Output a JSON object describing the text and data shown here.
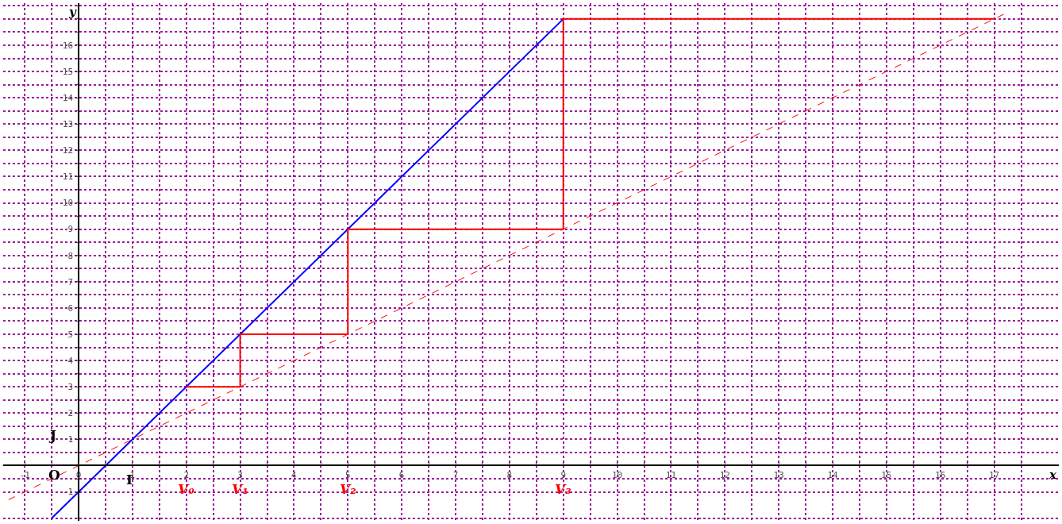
{
  "chart_data": {
    "type": "line",
    "xlabel": "x",
    "ylabel": "y",
    "xlim": [
      -1.4,
      18.2
    ],
    "ylim": [
      -2.1,
      17.6
    ],
    "xticks": [
      -1,
      {
        "value": -0.5,
        "label": null
      },
      0,
      {
        "value": 0.5,
        "label": null
      },
      1,
      {
        "value": 1.5,
        "label": null
      },
      2,
      {
        "value": 2.5,
        "label": null
      },
      3,
      {
        "value": 3.5,
        "label": null
      },
      4,
      {
        "value": 4.5,
        "label": null
      },
      5,
      {
        "value": 5.5,
        "label": null
      },
      6,
      {
        "value": 6.5,
        "label": null
      },
      7,
      {
        "value": 7.5,
        "label": null
      },
      8,
      {
        "value": 8.5,
        "label": null
      },
      9,
      {
        "value": 9.5,
        "label": null
      },
      10,
      {
        "value": 10.5,
        "label": null
      },
      11,
      {
        "value": 11.5,
        "label": null
      },
      12,
      {
        "value": 12.5,
        "label": null
      },
      13,
      {
        "value": 13.5,
        "label": null
      },
      14,
      {
        "value": 14.5,
        "label": null
      },
      15,
      {
        "value": 15.5,
        "label": null
      },
      16,
      {
        "value": 16.5,
        "label": null
      },
      17,
      {
        "value": 17.5,
        "label": null
      }
    ],
    "yticks": [
      {
        "value": -2,
        "label": null
      },
      -1,
      {
        "value": -0.5,
        "label": null
      },
      {
        "value": 0.5,
        "label": null
      },
      1,
      {
        "value": 1.5,
        "label": null
      },
      2,
      {
        "value": 2.5,
        "label": null
      },
      3,
      {
        "value": 3.5,
        "label": null
      },
      4,
      {
        "value": 4.5,
        "label": null
      },
      5,
      {
        "value": 5.5,
        "label": null
      },
      6,
      {
        "value": 6.5,
        "label": null
      },
      7,
      {
        "value": 7.5,
        "label": null
      },
      8,
      {
        "value": 8.5,
        "label": null
      },
      9,
      {
        "value": 9.5,
        "label": null
      },
      10,
      {
        "value": 10.5,
        "label": null
      },
      11,
      {
        "value": 11.5,
        "label": null
      },
      12,
      {
        "value": 12.5,
        "label": null
      },
      13,
      {
        "value": 13.5,
        "label": null
      },
      14,
      {
        "value": 14.5,
        "label": null
      },
      15,
      {
        "value": 15.5,
        "label": null
      },
      16,
      {
        "value": 16.5,
        "label": null
      },
      {
        "value": 17,
        "label": null
      },
      {
        "value": 17.5,
        "label": null
      }
    ],
    "grid": true,
    "marker": "none",
    "series": [
      {
        "color": "#0000ff",
        "x": [
          -0.5,
          9
        ],
        "values": [
          -2,
          17
        ],
        "line_style": "solid"
      },
      {
        "color": "#ff0000",
        "x": [
          -1.3,
          17.2
        ],
        "values": [
          -1.3,
          17.2
        ],
        "line_style": "dashed"
      },
      {
        "color": "#ff0000",
        "x": [
          2,
          3,
          3,
          5,
          5,
          9,
          9,
          17
        ],
        "values": [
          3,
          3,
          5,
          5,
          9,
          9,
          17,
          17
        ],
        "line_style": "solid"
      }
    ],
    "annotations": [
      "O",
      "J",
      "I",
      "V₀",
      "V₁",
      "V₂",
      "V₃"
    ]
  }
}
